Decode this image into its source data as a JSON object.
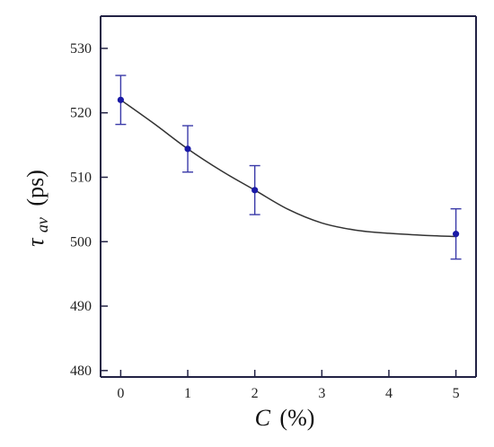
{
  "chart_data": {
    "type": "scatter",
    "xlabel_symbol": "C",
    "xlabel_unit": "(%)",
    "ylabel_symbol": "τ",
    "ylabel_subscript": "av",
    "ylabel_unit": "(ps)",
    "xlim": [
      -0.3,
      5.3
    ],
    "ylim": [
      479,
      535
    ],
    "xticks": [
      0,
      1,
      2,
      3,
      4,
      5
    ],
    "yticks": [
      480,
      490,
      500,
      510,
      520,
      530
    ],
    "grid": false,
    "points": [
      {
        "x": 0,
        "y": 522,
        "err": 3.8
      },
      {
        "x": 1,
        "y": 514.4,
        "err": 3.6
      },
      {
        "x": 2,
        "y": 508,
        "err": 3.8
      },
      {
        "x": 5,
        "y": 501.2,
        "err": 3.9
      }
    ],
    "fit_curve": {
      "x": [
        0,
        0.5,
        1,
        1.5,
        2,
        2.5,
        3,
        3.5,
        4,
        4.5,
        5
      ],
      "y": [
        522,
        518.3,
        514.4,
        511,
        508,
        505,
        502.9,
        501.8,
        501.3,
        501,
        500.8
      ]
    },
    "colors": {
      "marker": "#1a1aa6",
      "errorbar": "#3a3aa8",
      "curve": "#333333",
      "axis": "#222244"
    }
  }
}
